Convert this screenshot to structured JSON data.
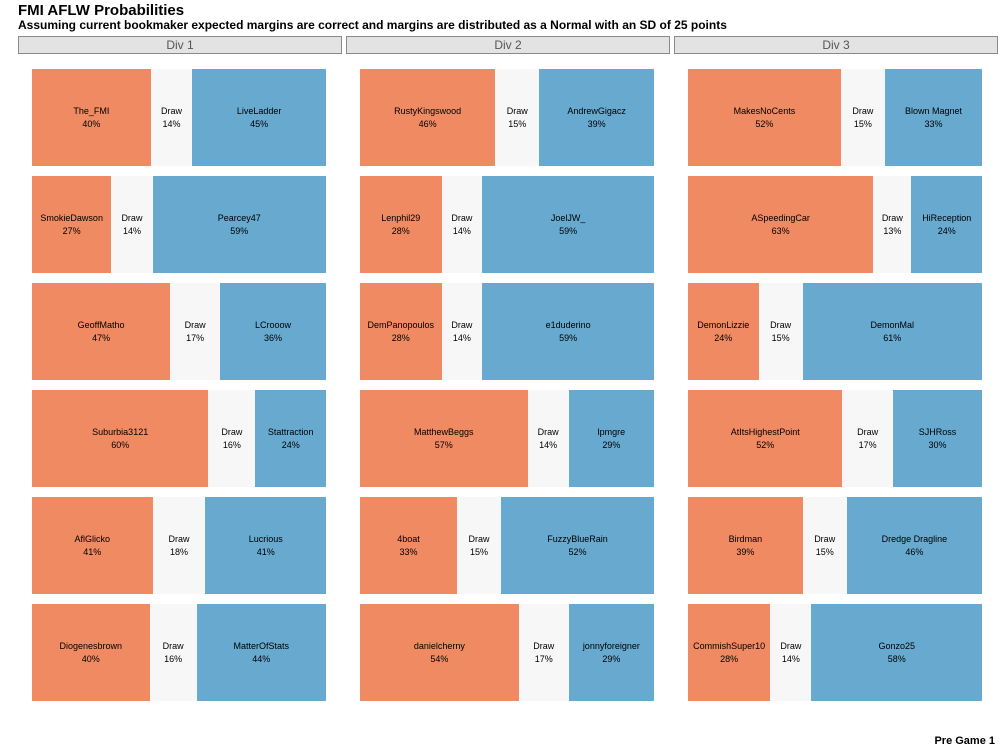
{
  "title": "FMI AFLW Probabilities",
  "subtitle": "Assuming current bookmaker expected margins are correct and margins are distributed as a Normal with an SD of 25 points",
  "footer": "Pre Game 1",
  "colors": {
    "home": "#ef8a62",
    "draw": "#f7f7f7",
    "away": "#67a9cf"
  },
  "chart_data": {
    "type": "bar",
    "stacked": "100% horizontal",
    "draw_label": "Draw",
    "panels": [
      {
        "name": "Div 1",
        "games": [
          {
            "home": "The_FMI",
            "home_pct": 40,
            "draw_pct": 14,
            "away": "LiveLadder",
            "away_pct": 45
          },
          {
            "home": "SmokieDawson",
            "home_pct": 27,
            "draw_pct": 14,
            "away": "Pearcey47",
            "away_pct": 59
          },
          {
            "home": "GeoffMatho",
            "home_pct": 47,
            "draw_pct": 17,
            "away": "LCrooow",
            "away_pct": 36
          },
          {
            "home": "Suburbia3121",
            "home_pct": 60,
            "draw_pct": 16,
            "away": "Stattraction",
            "away_pct": 24
          },
          {
            "home": "AflGlicko",
            "home_pct": 41,
            "draw_pct": 18,
            "away": "Lucrious",
            "away_pct": 41
          },
          {
            "home": "Diogenesbrown",
            "home_pct": 40,
            "draw_pct": 16,
            "away": "MatterOfStats",
            "away_pct": 44
          }
        ]
      },
      {
        "name": "Div 2",
        "games": [
          {
            "home": "RustyKingswood",
            "home_pct": 46,
            "draw_pct": 15,
            "away": "AndrewGigacz",
            "away_pct": 39
          },
          {
            "home": "Lenphil29",
            "home_pct": 28,
            "draw_pct": 14,
            "away": "JoelJW_",
            "away_pct": 59
          },
          {
            "home": "DemPanopoulos",
            "home_pct": 28,
            "draw_pct": 14,
            "away": "e1duderino",
            "away_pct": 59
          },
          {
            "home": "MatthewBeggs",
            "home_pct": 57,
            "draw_pct": 14,
            "away": "lpmgre",
            "away_pct": 29
          },
          {
            "home": "4boat",
            "home_pct": 33,
            "draw_pct": 15,
            "away": "FuzzyBlueRain",
            "away_pct": 52
          },
          {
            "home": "danielcherny",
            "home_pct": 54,
            "draw_pct": 17,
            "away": "jonnyforeigner",
            "away_pct": 29
          }
        ]
      },
      {
        "name": "Div 3",
        "games": [
          {
            "home": "MakesNoCents",
            "home_pct": 52,
            "draw_pct": 15,
            "away": "Blown Magnet",
            "away_pct": 33
          },
          {
            "home": "ASpeedingCar",
            "home_pct": 63,
            "draw_pct": 13,
            "away": "HiReception",
            "away_pct": 24
          },
          {
            "home": "DemonLizzie",
            "home_pct": 24,
            "draw_pct": 15,
            "away": "DemonMal",
            "away_pct": 61
          },
          {
            "home": "AtItsHighestPoint",
            "home_pct": 52,
            "draw_pct": 17,
            "away": "SJHRoss",
            "away_pct": 30
          },
          {
            "home": "Birdman",
            "home_pct": 39,
            "draw_pct": 15,
            "away": "Dredge Dragline",
            "away_pct": 46
          },
          {
            "home": "CommishSuper10",
            "home_pct": 28,
            "draw_pct": 14,
            "away": "Gonzo25",
            "away_pct": 58
          }
        ]
      }
    ]
  }
}
